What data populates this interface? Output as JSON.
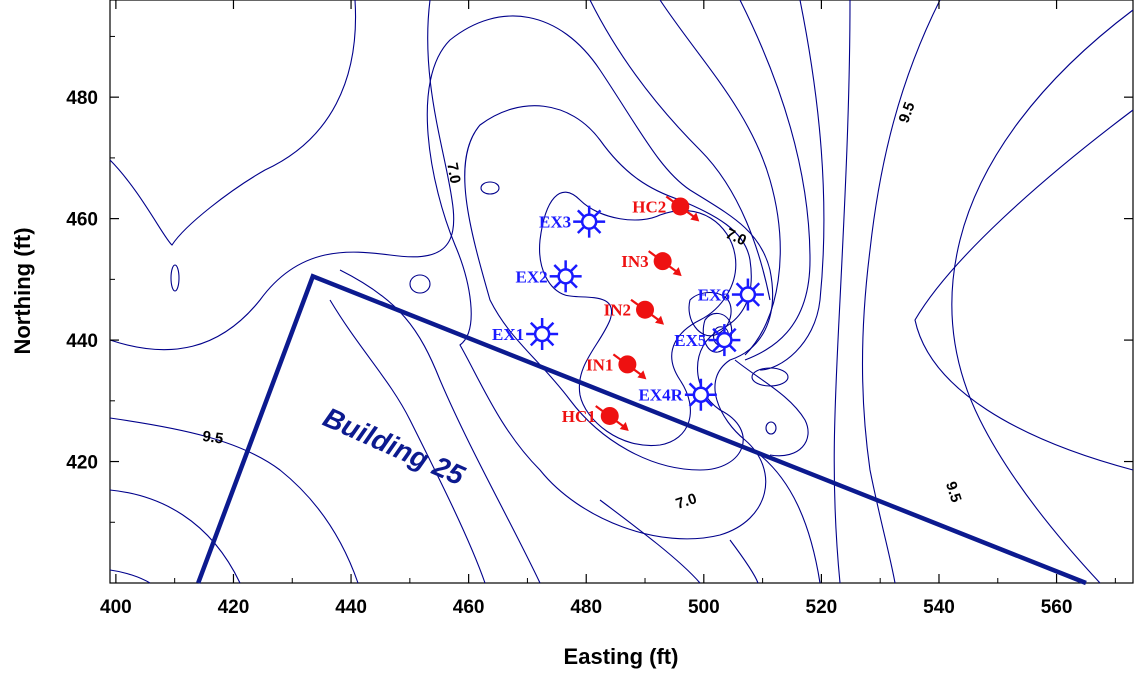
{
  "axes": {
    "x_title": "Easting (ft)",
    "y_title": "Northing (ft)",
    "x_range": [
      399,
      573
    ],
    "y_range": [
      400,
      496
    ],
    "x_ticks": [
      400,
      420,
      440,
      460,
      480,
      500,
      520,
      540,
      560
    ],
    "y_ticks": [
      420,
      440,
      460,
      480
    ]
  },
  "colors": {
    "contour": "#00008b",
    "extraction_well": "#1a1aff",
    "injection_well": "#ee1111",
    "building": "#0c1a8f"
  },
  "building": {
    "label": "Building 25",
    "outline": [
      [
        414,
        400
      ],
      [
        433.5,
        450.5
      ],
      [
        565,
        400
      ]
    ]
  },
  "contour_labels": [
    {
      "text": "7.0",
      "x": 457.5,
      "y": 467.5,
      "angle": 80
    },
    {
      "text": "7.0",
      "x": 505.5,
      "y": 457,
      "angle": 25
    },
    {
      "text": "7.0",
      "x": 497,
      "y": 413.5,
      "angle": -18
    },
    {
      "text": "9.5",
      "x": 534.5,
      "y": 477.5,
      "angle": -70
    },
    {
      "text": "9.5",
      "x": 542.5,
      "y": 415,
      "angle": 72
    },
    {
      "text": "9.5",
      "x": 416.5,
      "y": 424,
      "angle": 8
    }
  ],
  "extraction_wells": [
    {
      "label": "EX1",
      "x": 472.5,
      "y": 441
    },
    {
      "label": "EX2",
      "x": 476.5,
      "y": 450.5
    },
    {
      "label": "EX3",
      "x": 480.5,
      "y": 459.5
    },
    {
      "label": "EX4R",
      "x": 499.5,
      "y": 431
    },
    {
      "label": "EX5",
      "x": 503.5,
      "y": 440
    },
    {
      "label": "EX6",
      "x": 507.5,
      "y": 447.5
    }
  ],
  "injection_wells": [
    {
      "label": "HC1",
      "x": 484,
      "y": 427.5
    },
    {
      "label": "IN1",
      "x": 487,
      "y": 436
    },
    {
      "label": "IN2",
      "x": 490,
      "y": 445
    },
    {
      "label": "IN3",
      "x": 493,
      "y": 453
    },
    {
      "label": "HC2",
      "x": 496,
      "y": 462
    }
  ]
}
